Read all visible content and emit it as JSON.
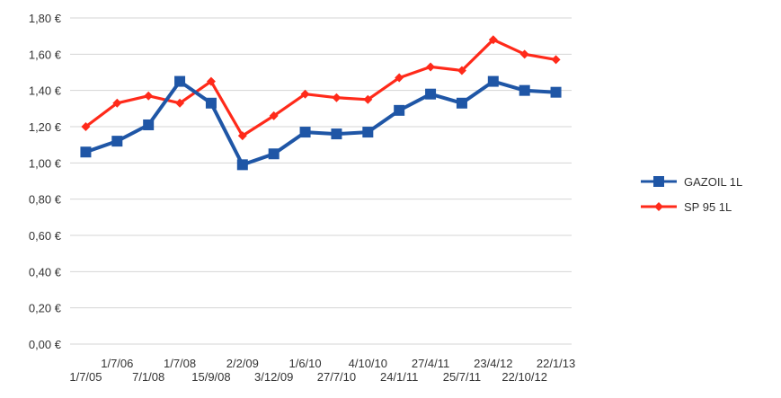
{
  "chart_data": {
    "type": "line",
    "title": "",
    "xlabel": "",
    "ylabel": "",
    "ylim": [
      0,
      1.8
    ],
    "yticks": [
      "0,00 €",
      "0,20 €",
      "0,40 €",
      "0,60 €",
      "0,80 €",
      "1,00 €",
      "1,20 €",
      "1,40 €",
      "1,60 €",
      "1,80 €"
    ],
    "grid": "horizontal",
    "legend_position": "right",
    "categories": [
      "1/7/05",
      "1/7/06",
      "7/1/08",
      "1/7/08",
      "15/9/08",
      "2/2/09",
      "3/12/09",
      "1/6/10",
      "27/7/10",
      "4/10/10",
      "24/1/11",
      "27/4/11",
      "25/7/11",
      "23/4/12",
      "22/10/12",
      "22/1/13"
    ],
    "series": [
      {
        "name": "GAZOIL 1L",
        "color": "#1f56a6",
        "marker": "square",
        "values": [
          1.06,
          1.12,
          1.21,
          1.45,
          1.33,
          0.99,
          1.05,
          1.17,
          1.16,
          1.17,
          1.29,
          1.38,
          1.33,
          1.45,
          1.4,
          1.39
        ]
      },
      {
        "name": "SP 95 1L",
        "color": "#ff2a1a",
        "marker": "diamond",
        "values": [
          1.2,
          1.33,
          1.37,
          1.33,
          1.45,
          1.15,
          1.26,
          1.38,
          1.36,
          1.35,
          1.47,
          1.53,
          1.51,
          1.68,
          1.6,
          1.57
        ]
      }
    ]
  }
}
